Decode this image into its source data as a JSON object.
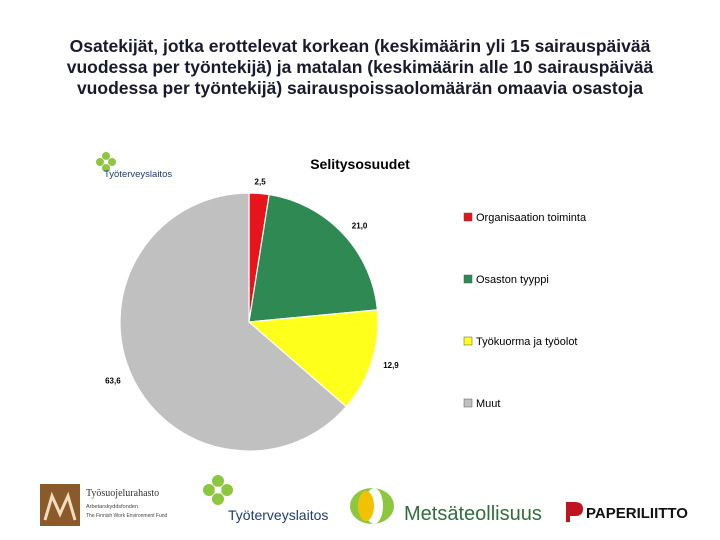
{
  "slide": {
    "title_lines": [
      "Osatekijät, jotka erottelevat korkean (keskimäärin yli 15 sairauspäivää",
      "vuodessa per työntekijä) ja matalan (keskimäärin alle 10 sairauspäivää",
      "vuodessa per työntekijä) sairauspoissaolomäärän omaavia osastoja"
    ]
  },
  "chart_data": {
    "type": "pie",
    "title": "Selitysosuudet",
    "categories": [
      "Organisaation toiminta",
      "Osaston tyyppi",
      "Työkuorma ja työolot",
      "Muut"
    ],
    "values": [
      2.5,
      21.0,
      12.9,
      63.6
    ],
    "data_labels": [
      "2,5",
      "21,0",
      "12,9",
      "63,6"
    ],
    "colors": [
      "#e8141c",
      "#2e8a52",
      "#ffff1c",
      "#c0c0c0"
    ],
    "legend_position": "right",
    "start": "12 o'clock",
    "direction": "clockwise"
  },
  "logos": {
    "chart_logo": "Työterveyslaitos",
    "footer": [
      {
        "name": "tsr",
        "lines": [
          "Työsuojelurahasto",
          "Arbetarskyddsfonden",
          "The Finnish Work Environment Fund"
        ]
      },
      {
        "name": "ttl",
        "text": "Työterveyslaitos"
      },
      {
        "name": "metsateollisuus",
        "text": "Metsäteollisuus"
      },
      {
        "name": "paperiliitto",
        "text": "PAPERILIITTO"
      }
    ]
  }
}
